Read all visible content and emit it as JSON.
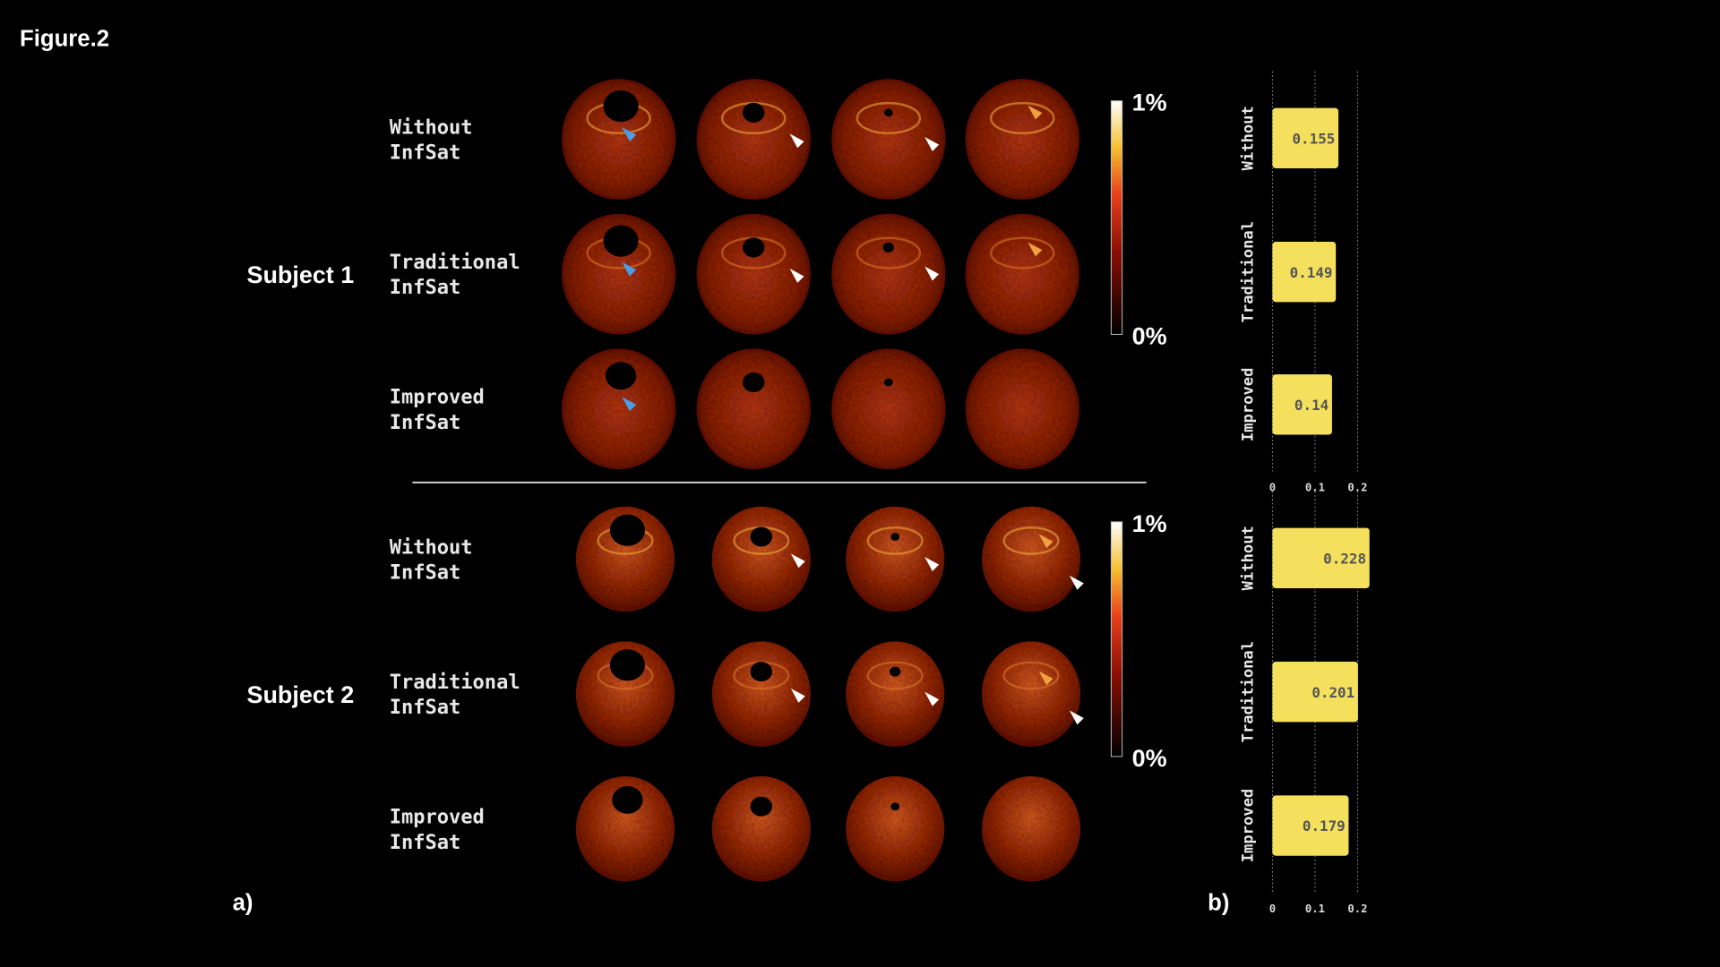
{
  "figure_label": "Figure.2",
  "panel_labels": [
    "a)",
    "b)"
  ],
  "subjects": [
    {
      "label": "Subject 1",
      "rows": [
        [
          "Without",
          "InfSat"
        ],
        [
          "Traditional",
          "InfSat"
        ],
        [
          "Improved",
          "InfSat"
        ]
      ]
    },
    {
      "label": "Subject 2",
      "rows": [
        [
          "Without",
          "InfSat"
        ],
        [
          "Traditional",
          "InfSat"
        ],
        [
          "Improved",
          "InfSat"
        ]
      ]
    }
  ],
  "colorbars": [
    {
      "max_label": "1%",
      "min_label": "0%"
    },
    {
      "max_label": "1%",
      "min_label": "0%"
    }
  ],
  "chart_data": [
    {
      "type": "bar",
      "orientation": "horizontal",
      "categories": [
        "Without",
        "Traditional",
        "Improved"
      ],
      "values": [
        0.155,
        0.149,
        0.14
      ],
      "color": "#f4e05c",
      "xlim": [
        0,
        0.25
      ],
      "xticks": [
        0,
        0.1,
        0.2
      ],
      "grid": true
    },
    {
      "type": "bar",
      "orientation": "horizontal",
      "categories": [
        "Without",
        "Traditional",
        "Improved"
      ],
      "values": [
        0.228,
        0.201,
        0.179
      ],
      "color": "#f4e05c",
      "xlim": [
        0,
        0.25
      ],
      "xticks": [
        0,
        0.1,
        0.2
      ],
      "grid": true
    }
  ]
}
